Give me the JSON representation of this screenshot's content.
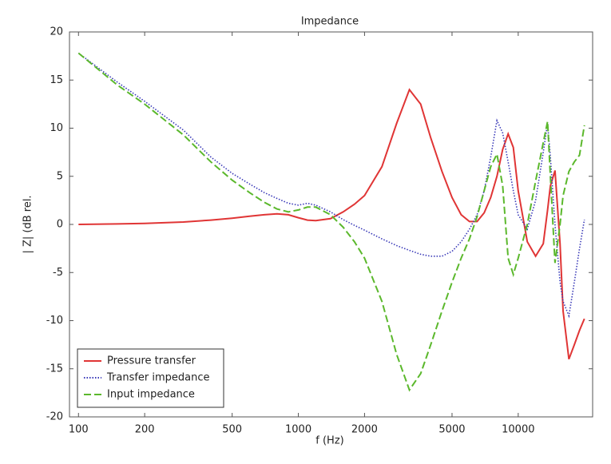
{
  "chart_data": {
    "type": "line",
    "title": "Impedance",
    "x_label": "f (Hz)",
    "y_label": "| Z| (dB rel.",
    "x_log": true,
    "xlim": [
      91,
      21800
    ],
    "xticks": [
      100,
      200,
      500,
      1000,
      2000,
      5000,
      10000
    ],
    "ylim": [
      -20,
      20
    ],
    "yticks": [
      -20,
      -15,
      -10,
      -5,
      0,
      5,
      10,
      15,
      20
    ],
    "grid": false,
    "legend": "lower-left",
    "x": [
      100,
      150,
      200,
      300,
      400,
      500,
      600,
      700,
      800,
      900,
      1000,
      1100,
      1200,
      1400,
      1600,
      1800,
      2000,
      2400,
      2800,
      3200,
      3600,
      4000,
      4500,
      5000,
      5500,
      6000,
      6500,
      7000,
      7500,
      8000,
      8500,
      9000,
      9500,
      10000,
      11000,
      12000,
      13000,
      13600,
      14000,
      14700,
      15500,
      16000,
      17000,
      18000,
      19000,
      20000
    ],
    "series": [
      {
        "name": "Pressure transfer",
        "color": "#e03535",
        "dash": "solid",
        "values": [
          0,
          0.05,
          0.1,
          0.25,
          0.45,
          0.65,
          0.85,
          1.0,
          1.1,
          1.0,
          0.7,
          0.45,
          0.4,
          0.6,
          1.3,
          2.1,
          3.0,
          6.0,
          10.5,
          14.0,
          12.5,
          9.0,
          5.5,
          2.8,
          1.0,
          0.3,
          0.3,
          1.2,
          2.8,
          5.0,
          7.8,
          9.4,
          8.0,
          3.5,
          -1.8,
          -3.3,
          -2.0,
          1.5,
          4.0,
          5.6,
          -2,
          -9,
          -14,
          -12.5,
          -11,
          -9.8
        ]
      },
      {
        "name": "Transfer impedance",
        "color": "#3a3ab8",
        "dash": "dotted",
        "values": [
          17.8,
          14.8,
          12.8,
          9.8,
          7.0,
          5.3,
          4.2,
          3.3,
          2.7,
          2.2,
          2.0,
          2.2,
          2.0,
          1.3,
          0.5,
          -0.1,
          -0.6,
          -1.5,
          -2.2,
          -2.7,
          -3.1,
          -3.3,
          -3.3,
          -2.8,
          -1.8,
          -0.5,
          1.0,
          3.5,
          7.0,
          10.8,
          9.5,
          6.5,
          3.5,
          1.0,
          -0.5,
          2.5,
          7.5,
          10.5,
          7.0,
          0,
          -6,
          -8,
          -9.5,
          -6,
          -2.5,
          0.5
        ]
      },
      {
        "name": "Input impedance",
        "color": "#5bb82c",
        "dash": "dashed",
        "values": [
          17.8,
          14.5,
          12.5,
          9.3,
          6.5,
          4.6,
          3.3,
          2.3,
          1.6,
          1.3,
          1.5,
          1.8,
          1.8,
          1.0,
          -0.3,
          -1.8,
          -3.5,
          -8,
          -13.5,
          -17.2,
          -15.5,
          -12.5,
          -9,
          -6,
          -3.5,
          -1.5,
          0.8,
          3.5,
          6.0,
          7.3,
          4,
          -3.5,
          -5.2,
          -3.5,
          0,
          4.5,
          8.5,
          10.7,
          5,
          -4,
          0,
          3,
          5.5,
          6.5,
          7.2,
          10.3
        ]
      }
    ]
  }
}
